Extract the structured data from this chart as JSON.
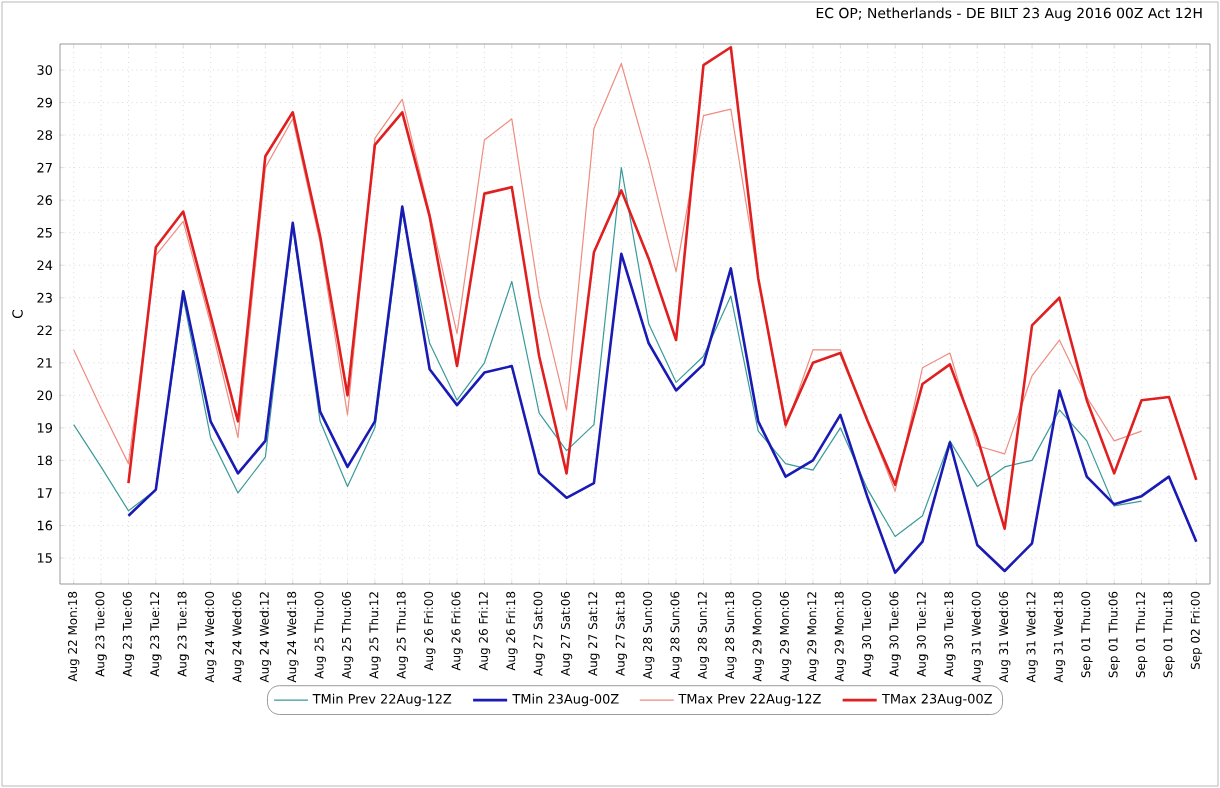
{
  "chart_data": {
    "type": "line",
    "title": "EC OP; Netherlands - DE BILT 23 Aug 2016 00Z Act 12H",
    "ylabel": "C",
    "categories": [
      "Aug 22 Mon:18",
      "Aug 23 Tue:00",
      "Aug 23 Tue:06",
      "Aug 23 Tue:12",
      "Aug 23 Tue:18",
      "Aug 24 Wed:00",
      "Aug 24 Wed:06",
      "Aug 24 Wed:12",
      "Aug 24 Wed:18",
      "Aug 25 Thu:00",
      "Aug 25 Thu:06",
      "Aug 25 Thu:12",
      "Aug 25 Thu:18",
      "Aug 26 Fri:00",
      "Aug 26 Fri:06",
      "Aug 26 Fri:12",
      "Aug 26 Fri:18",
      "Aug 27 Sat:00",
      "Aug 27 Sat:06",
      "Aug 27 Sat:12",
      "Aug 27 Sat:18",
      "Aug 28 Sun:00",
      "Aug 28 Sun:06",
      "Aug 28 Sun:12",
      "Aug 28 Sun:18",
      "Aug 29 Mon:00",
      "Aug 29 Mon:06",
      "Aug 29 Mon:12",
      "Aug 29 Mon:18",
      "Aug 30 Tue:00",
      "Aug 30 Tue:06",
      "Aug 30 Tue:12",
      "Aug 30 Tue:18",
      "Aug 31 Wed:00",
      "Aug 31 Wed:06",
      "Aug 31 Wed:12",
      "Aug 31 Wed:18",
      "Sep 01 Thu:00",
      "Sep 01 Thu:06",
      "Sep 01 Thu:12",
      "Sep 01 Thu:18",
      "Sep 02 Fri:00"
    ],
    "series": [
      {
        "name": "TMin Prev 22Aug-12Z",
        "color": "#3a9a9a",
        "values": [
          19.1,
          17.8,
          16.45,
          17.1,
          23.0,
          18.7,
          17.0,
          18.1,
          25.2,
          19.2,
          17.2,
          19.0,
          25.6,
          21.6,
          19.85,
          21.0,
          23.5,
          19.45,
          18.3,
          19.1,
          27.0,
          22.2,
          20.4,
          21.2,
          23.05,
          18.9,
          17.9,
          17.7,
          19.0,
          17.1,
          15.66,
          16.3,
          18.6,
          17.2,
          17.8,
          18.0,
          19.55,
          18.6,
          16.6,
          16.75,
          null,
          null
        ]
      },
      {
        "name": "TMin 23Aug-00Z",
        "color": "#1a1ab4",
        "values": [
          null,
          null,
          16.3,
          17.1,
          23.2,
          19.2,
          17.6,
          18.6,
          25.3,
          19.5,
          17.8,
          19.2,
          25.8,
          20.8,
          19.7,
          20.7,
          20.9,
          17.6,
          16.85,
          17.3,
          24.35,
          21.6,
          20.15,
          20.95,
          23.9,
          19.2,
          17.5,
          18.0,
          19.4,
          16.85,
          14.55,
          15.5,
          18.55,
          15.4,
          14.6,
          15.45,
          20.15,
          17.5,
          16.65,
          16.9,
          17.5,
          15.5
        ]
      },
      {
        "name": "TMax Prev 22Aug-12Z",
        "color": "#f08c80",
        "values": [
          21.4,
          19.6,
          17.9,
          24.3,
          25.35,
          22.2,
          18.7,
          27.0,
          28.5,
          24.7,
          19.4,
          27.9,
          29.1,
          25.6,
          21.9,
          27.85,
          28.5,
          23.05,
          19.55,
          28.2,
          30.2,
          27.2,
          23.8,
          28.6,
          28.8,
          23.6,
          19.0,
          21.4,
          21.4,
          19.2,
          17.05,
          20.85,
          21.3,
          18.45,
          18.2,
          20.6,
          21.7,
          19.95,
          18.6,
          18.9,
          null,
          null
        ]
      },
      {
        "name": "TMax 23Aug-00Z",
        "color": "#e02020",
        "values": [
          null,
          null,
          17.3,
          24.55,
          25.65,
          22.45,
          19.2,
          27.35,
          28.7,
          24.9,
          20.0,
          27.7,
          28.7,
          25.5,
          20.9,
          26.2,
          26.4,
          21.2,
          17.6,
          24.4,
          26.3,
          24.2,
          21.7,
          30.15,
          30.7,
          23.6,
          19.1,
          21.0,
          21.3,
          19.2,
          17.25,
          20.35,
          20.95,
          18.7,
          15.9,
          22.15,
          23.0,
          19.85,
          17.6,
          19.85,
          19.95,
          17.4
        ]
      }
    ],
    "ylim": [
      14.2,
      30.8
    ],
    "yticks": [
      15,
      16,
      17,
      18,
      19,
      20,
      21,
      22,
      23,
      24,
      25,
      26,
      27,
      28,
      29,
      30
    ],
    "grid": true,
    "legend": "bottom",
    "marker": "none",
    "line_style": "solid"
  }
}
